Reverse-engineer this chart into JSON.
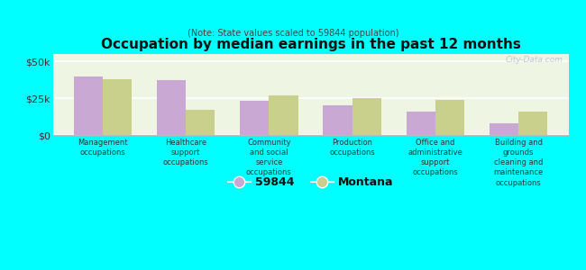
{
  "title": "Occupation by median earnings in the past 12 months",
  "subtitle": "(Note: State values scaled to 59844 population)",
  "categories": [
    "Management\noccupations",
    "Healthcare\nsupport\noccupations",
    "Community\nand social\nservice\noccupations",
    "Production\noccupations",
    "Office and\nadministrative\nsupport\noccupations",
    "Building and\ngrounds\ncleaning and\nmaintenance\noccupations"
  ],
  "values_59844": [
    40000,
    37000,
    23000,
    20000,
    16000,
    8000
  ],
  "values_montana": [
    38000,
    17000,
    27000,
    25000,
    24000,
    16000
  ],
  "color_59844": "#c9a8d4",
  "color_montana": "#c8d08c",
  "ylim": [
    0,
    55000
  ],
  "ytick_labels": [
    "$0",
    "$25k",
    "$50k"
  ],
  "legend_label_1": "59844",
  "legend_label_2": "Montana",
  "background_color": "#00ffff",
  "plot_bg_color": "#eef5e2",
  "watermark": "City-Data.com",
  "bar_width": 0.35
}
